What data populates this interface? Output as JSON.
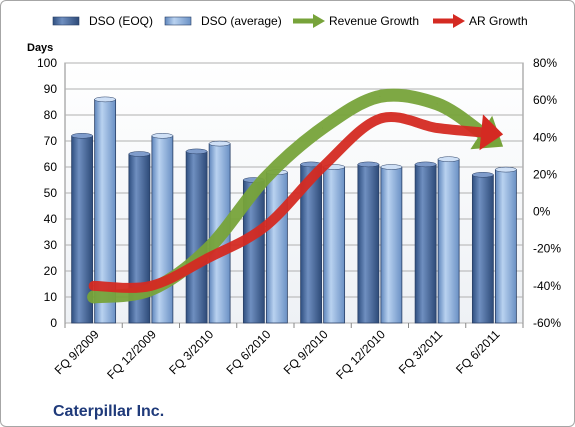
{
  "chart_data": {
    "type": "bar",
    "title": "",
    "company": "Caterpillar Inc.",
    "ylabel_left": "Days",
    "categories": [
      "FQ 9/2009",
      "FQ 12/2009",
      "FQ 3/2010",
      "FQ 6/2010",
      "FQ 9/2010",
      "FQ 12/2010",
      "FQ 3/2011",
      "FQ 6/2011"
    ],
    "ylim_left": [
      0,
      100
    ],
    "left_ticks": [
      "0",
      "10",
      "20",
      "30",
      "40",
      "50",
      "60",
      "70",
      "80",
      "90",
      "100"
    ],
    "ylim_right": [
      -60,
      80
    ],
    "right_ticks": [
      "-60%",
      "-40%",
      "-20%",
      "0%",
      "20%",
      "40%",
      "60%",
      "80%"
    ],
    "grid": true,
    "legend_position": "top",
    "series": [
      {
        "name": "DSO (EOQ)",
        "kind": "bar",
        "axis": "left",
        "color": "#4f6fa0",
        "values": [
          72,
          65,
          66,
          55,
          61,
          61,
          61,
          57
        ]
      },
      {
        "name": "DSO (average)",
        "kind": "bar",
        "axis": "left",
        "color": "#8eb4e3",
        "values": [
          86,
          72,
          69,
          58,
          60,
          60,
          63,
          59
        ]
      },
      {
        "name": "Revenue Growth",
        "kind": "arrow-line",
        "axis": "right",
        "color": "#77a33a",
        "values": [
          -46,
          -42,
          -20,
          18,
          45,
          62,
          58,
          38
        ]
      },
      {
        "name": "AR Growth",
        "kind": "arrow-line",
        "axis": "right",
        "color": "#d42a22",
        "values": [
          -40,
          -40,
          -25,
          -8,
          24,
          50,
          45,
          42
        ]
      }
    ]
  }
}
